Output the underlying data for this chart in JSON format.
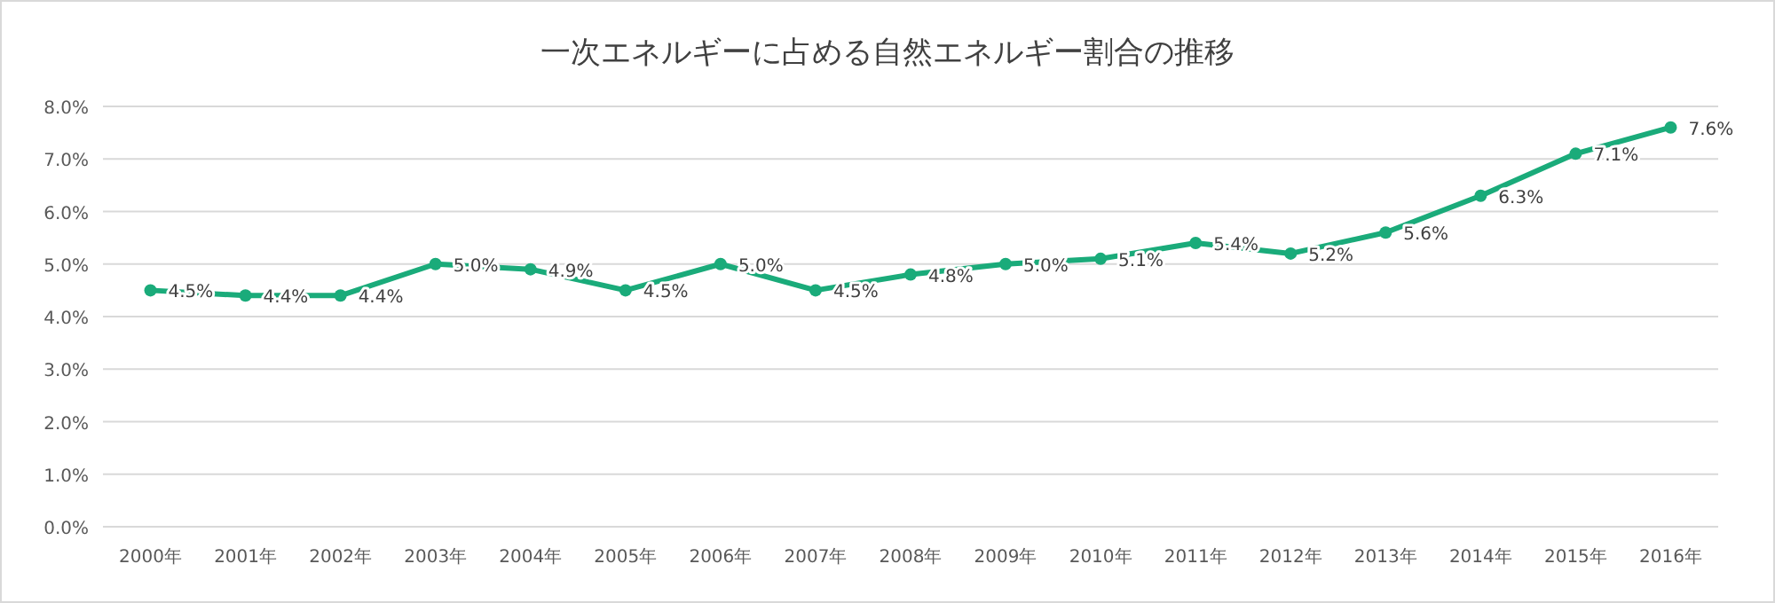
{
  "chart_data": {
    "type": "line",
    "title": "一次エネルギーに占める自然エネルギー割合の推移",
    "categories": [
      "2000年",
      "2001年",
      "2002年",
      "2003年",
      "2004年",
      "2005年",
      "2006年",
      "2007年",
      "2008年",
      "2009年",
      "2010年",
      "2011年",
      "2012年",
      "2013年",
      "2014年",
      "2015年",
      "2016年"
    ],
    "series": [
      {
        "color": "#1aab7a",
        "values": [
          4.5,
          4.4,
          4.4,
          5.0,
          4.9,
          4.5,
          5.0,
          4.5,
          4.8,
          5.0,
          5.1,
          5.4,
          5.2,
          5.6,
          6.3,
          7.1,
          7.6
        ],
        "value_labels": [
          "4.5%",
          "4.4%",
          "4.4%",
          "5.0%",
          "4.9%",
          "4.5%",
          "5.0%",
          "4.5%",
          "4.8%",
          "5.0%",
          "5.1%",
          "5.4%",
          "5.2%",
          "5.6%",
          "6.3%",
          "7.1%",
          "7.6%"
        ]
      }
    ],
    "ylim": [
      0,
      8
    ],
    "yticks": [
      {
        "value": 0,
        "label": "0.0%"
      },
      {
        "value": 1,
        "label": "1.0%"
      },
      {
        "value": 2,
        "label": "2.0%"
      },
      {
        "value": 3,
        "label": "3.0%"
      },
      {
        "value": 4,
        "label": "4.0%"
      },
      {
        "value": 5,
        "label": "5.0%"
      },
      {
        "value": 6,
        "label": "6.0%"
      },
      {
        "value": 7,
        "label": "7.0%"
      },
      {
        "value": 8,
        "label": "8.0%"
      }
    ],
    "grid": "y",
    "marker": "circle",
    "line_style": "solid"
  }
}
